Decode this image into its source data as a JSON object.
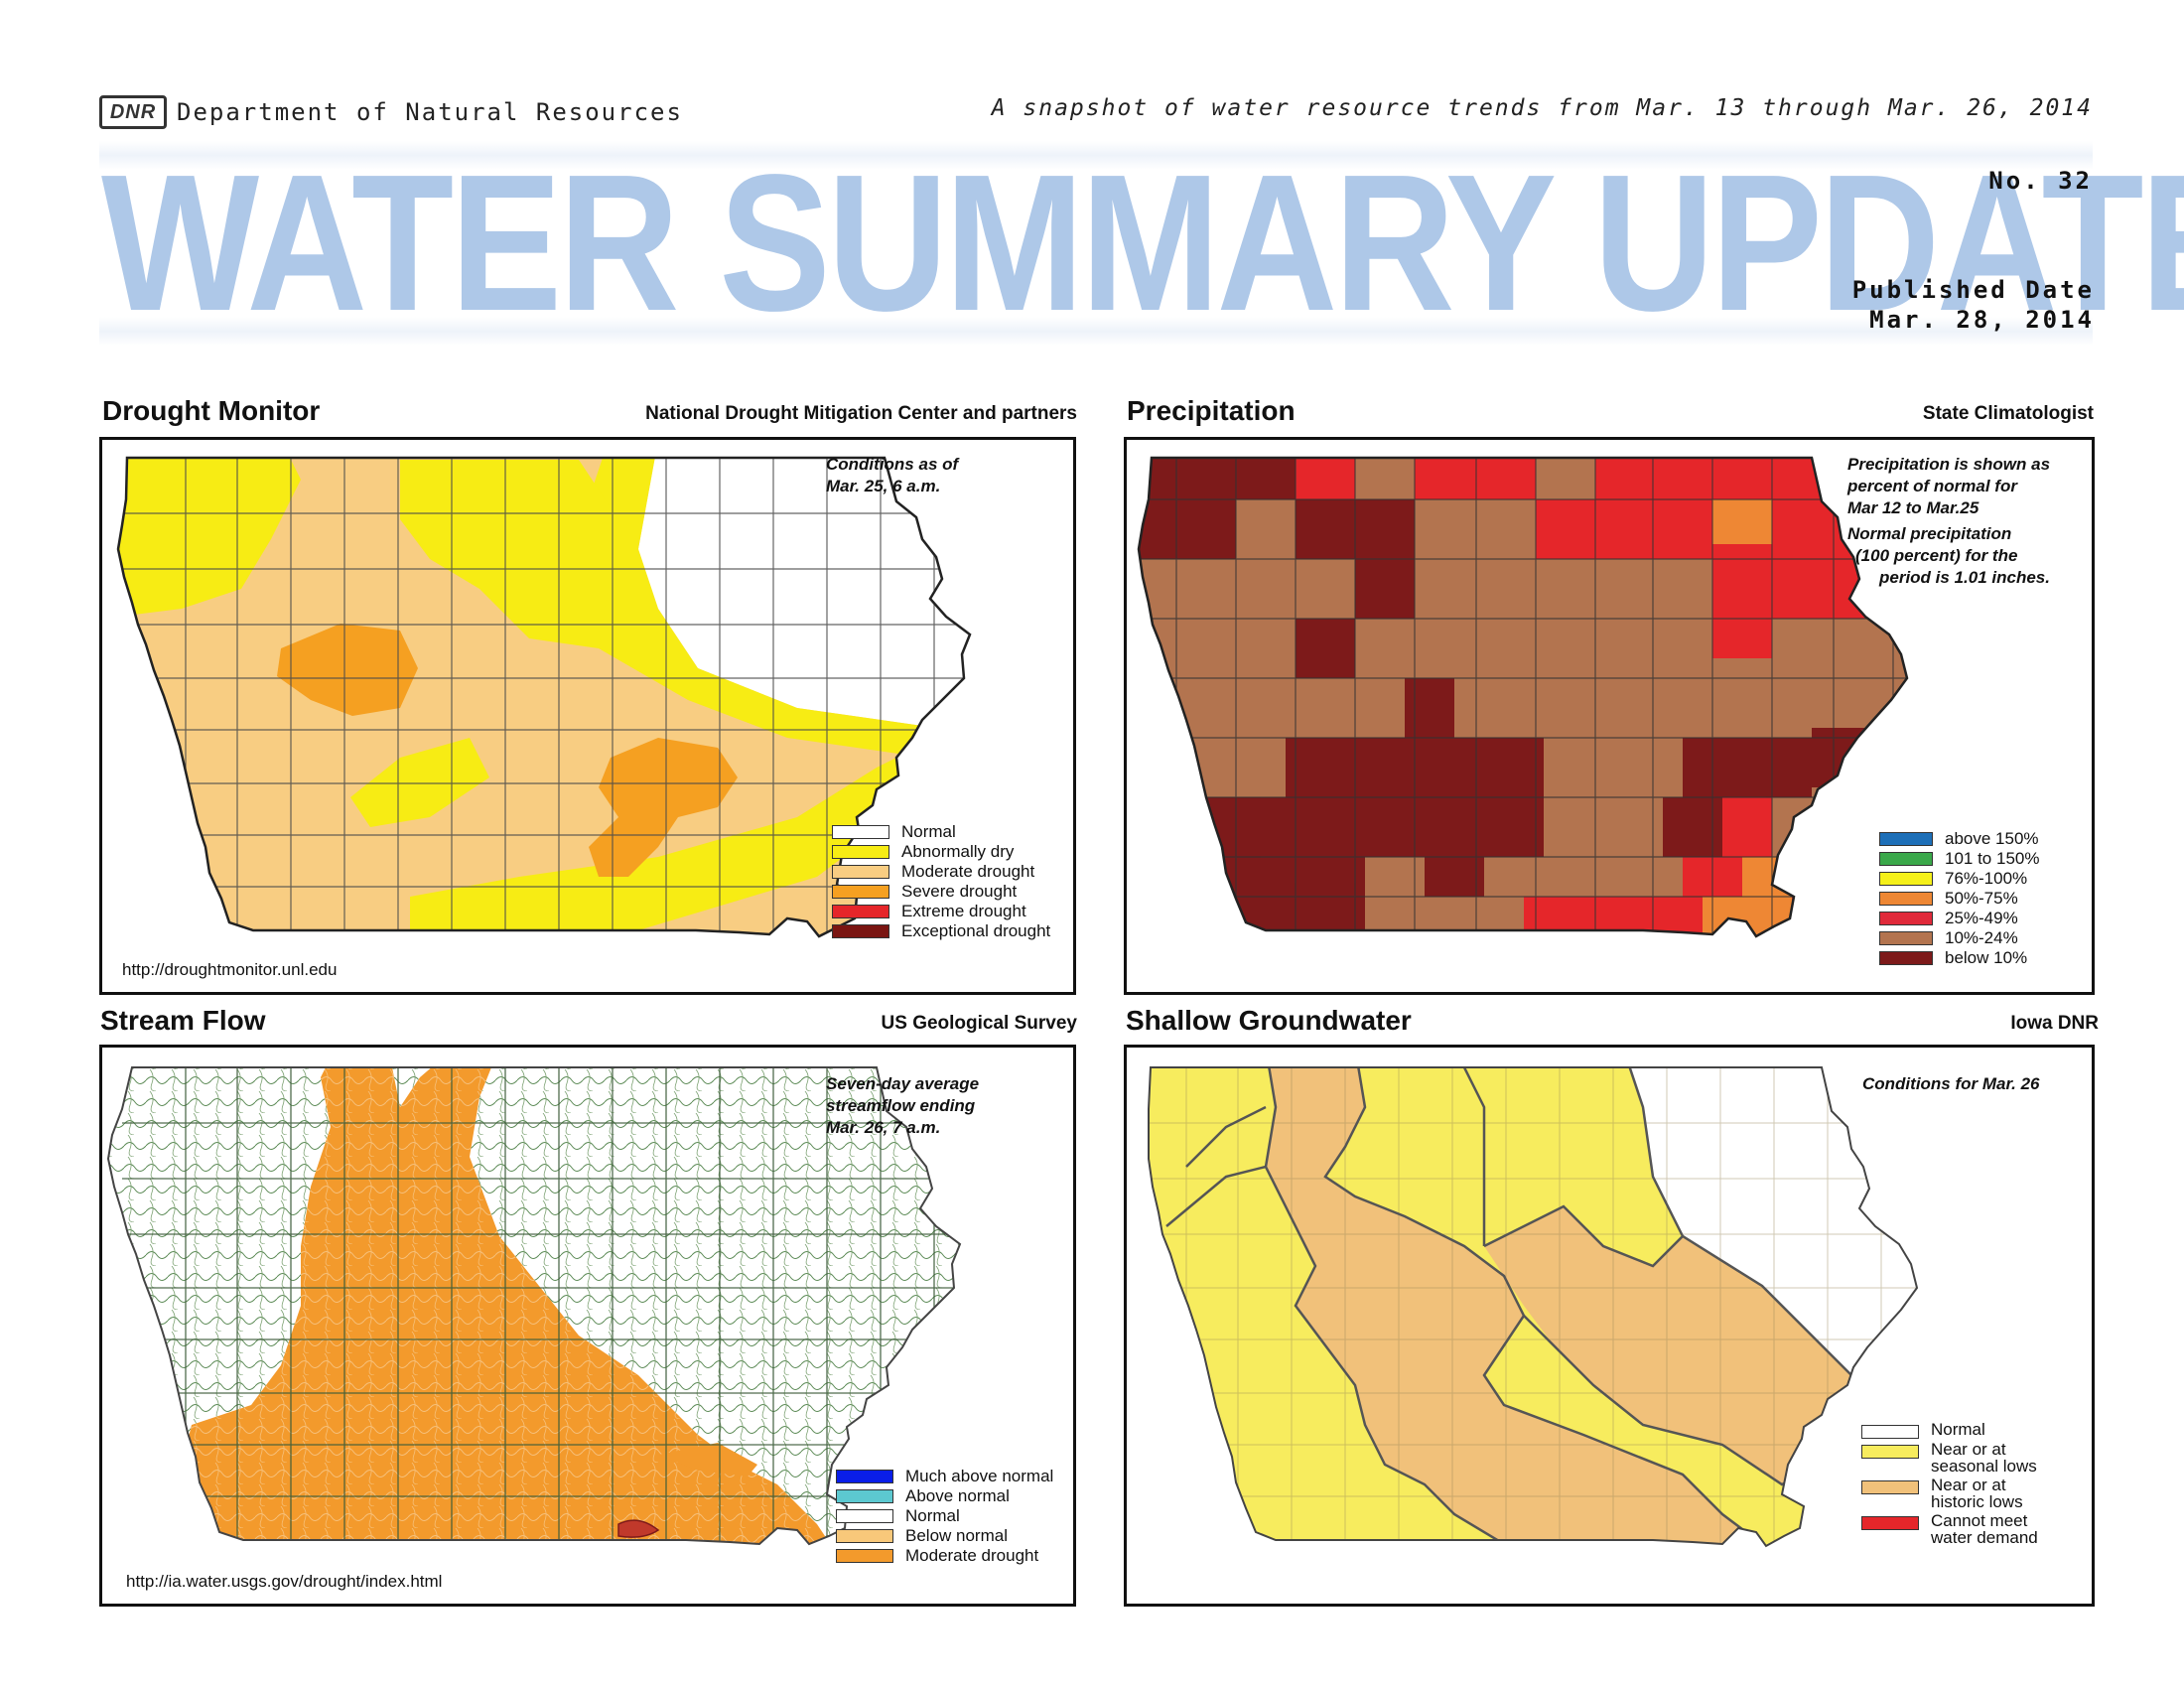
{
  "header": {
    "logo_text": "DNR",
    "department": "Department of Natural Resources",
    "snapshot": "A snapshot of water resource trends from Mar. 13 through Mar. 26, 2014",
    "title": "WATER SUMMARY UPDATE",
    "issue": "No. 32",
    "published_label": "Published Date",
    "published_date": "Mar. 28, 2014"
  },
  "colors": {
    "title_blue": "#aec8e8"
  },
  "panels": {
    "drought": {
      "title": "Drought Monitor",
      "source": "National Drought Mitigation Center and partners",
      "note_line1": "Conditions as of",
      "note_line2": "Mar. 25, 6 a.m.",
      "url": "http://droughtmonitor.unl.edu",
      "legend": [
        {
          "label": "Normal",
          "color": "#ffffff"
        },
        {
          "label": "Abnormally dry",
          "color": "#f7ec14"
        },
        {
          "label": "Moderate drought",
          "color": "#f8cd82"
        },
        {
          "label": "Severe drought",
          "color": "#f5a021"
        },
        {
          "label": "Extreme drought",
          "color": "#e5262a"
        },
        {
          "label": "Exceptional drought",
          "color": "#7a1512"
        }
      ]
    },
    "precip": {
      "title": "Precipitation",
      "source": "State Climatologist",
      "note_line1": "Precipitation is shown as",
      "note_line2": "percent of normal for",
      "note_line3": "Mar 12 to Mar.25",
      "note_line4": "Normal precipitation",
      "note_line5": "(100 percent) for the",
      "note_line6": "period is 1.01 inches.",
      "legend": [
        {
          "label": "above 150%",
          "color": "#1d6fb8"
        },
        {
          "label": "101 to 150%",
          "color": "#3aa84a"
        },
        {
          "label": "76%-100%",
          "color": "#f5f01a"
        },
        {
          "label": "50%-75%",
          "color": "#ee8734"
        },
        {
          "label": "25%-49%",
          "color": "#e02a3a"
        },
        {
          "label": "10%-24%",
          "color": "#b3744f"
        },
        {
          "label": "below 10%",
          "color": "#7d1a1a"
        }
      ]
    },
    "stream": {
      "title": "Stream Flow",
      "source": "US Geological Survey",
      "note_line1": "Seven-day average",
      "note_line2": "streamflow ending",
      "note_line3": "Mar. 26, 7 a.m.",
      "url": "http://ia.water.usgs.gov/drought/index.html",
      "legend": [
        {
          "label": "Much above normal",
          "color": "#0a1ee8"
        },
        {
          "label": "Above normal",
          "color": "#5cc8d0"
        },
        {
          "label": "Normal",
          "color": "#ffffff"
        },
        {
          "label": "Below normal",
          "color": "#f8c87a"
        },
        {
          "label": "Moderate drought",
          "color": "#f39a2c"
        }
      ]
    },
    "groundwater": {
      "title": "Shallow Groundwater",
      "source": "Iowa DNR",
      "note_line1": "Conditions for Mar. 26",
      "legend": [
        {
          "label1": "Normal",
          "label2": "",
          "color": "#ffffff"
        },
        {
          "label1": "Near or at",
          "label2": "seasonal lows",
          "color": "#f7ec5e"
        },
        {
          "label1": "Near or at",
          "label2": "historic lows",
          "color": "#f1c17a"
        },
        {
          "label1": "Cannot meet",
          "label2": "water demand",
          "color": "#e5262a"
        }
      ]
    }
  }
}
